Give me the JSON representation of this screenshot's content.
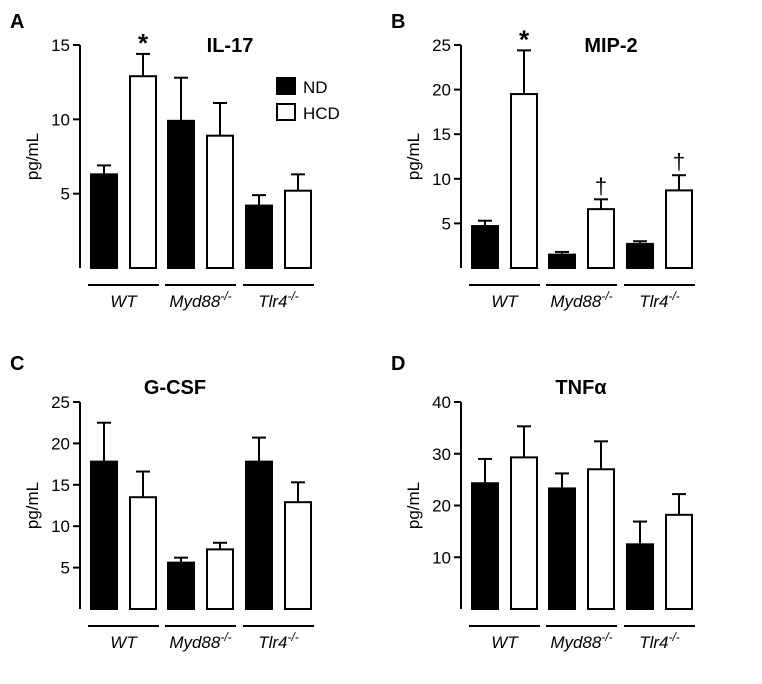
{
  "colors": {
    "nd": "#000000",
    "hcd": "#ffffff",
    "stroke": "#000000"
  },
  "legend": {
    "items": [
      {
        "name": "ND",
        "fill": "#000000"
      },
      {
        "name": "HCD",
        "fill": "#ffffff"
      }
    ],
    "placement": "top-right"
  },
  "chart_data": [
    {
      "panel_label": "A",
      "type": "bar",
      "title": "IL-17",
      "ylabel": "pg/mL",
      "ylim": [
        0,
        15
      ],
      "yticks": [
        5,
        10,
        15
      ],
      "groups": [
        {
          "name": "WT",
          "sup": ""
        },
        {
          "name": "Myd88",
          "sup": "-/-"
        },
        {
          "name": "Tlr4",
          "sup": "-/-"
        }
      ],
      "series": [
        {
          "name": "ND",
          "values": [
            6.3,
            9.9,
            4.2
          ],
          "errors": [
            0.6,
            2.9,
            0.7
          ],
          "marks": [
            "",
            "",
            ""
          ]
        },
        {
          "name": "HCD",
          "values": [
            12.9,
            8.9,
            5.2
          ],
          "errors": [
            1.5,
            2.2,
            1.1
          ],
          "marks": [
            "*",
            "",
            ""
          ]
        }
      ],
      "show_legend": true
    },
    {
      "panel_label": "B",
      "type": "bar",
      "title": "MIP-2",
      "ylabel": "pg/mL",
      "ylim": [
        0,
        25
      ],
      "yticks": [
        5,
        10,
        15,
        20,
        25
      ],
      "groups": [
        {
          "name": "WT",
          "sup": ""
        },
        {
          "name": "Myd88",
          "sup": "-/-"
        },
        {
          "name": "Tlr4",
          "sup": "-/-"
        }
      ],
      "series": [
        {
          "name": "ND",
          "values": [
            4.7,
            1.5,
            2.7
          ],
          "errors": [
            0.6,
            0.3,
            0.3
          ],
          "marks": [
            "",
            "",
            ""
          ]
        },
        {
          "name": "HCD",
          "values": [
            19.5,
            6.6,
            8.7
          ],
          "errors": [
            4.9,
            1.1,
            1.7
          ],
          "marks": [
            "*",
            "†",
            "†"
          ]
        }
      ],
      "show_legend": false
    },
    {
      "panel_label": "C",
      "type": "bar",
      "title": "G-CSF",
      "ylabel": "pg/mL",
      "ylim": [
        0,
        25
      ],
      "yticks": [
        5,
        10,
        15,
        20,
        25
      ],
      "groups": [
        {
          "name": "WT",
          "sup": ""
        },
        {
          "name": "Myd88",
          "sup": "-/-"
        },
        {
          "name": "Tlr4",
          "sup": "-/-"
        }
      ],
      "series": [
        {
          "name": "ND",
          "values": [
            17.8,
            5.6,
            17.8
          ],
          "errors": [
            4.7,
            0.6,
            2.9
          ],
          "marks": [
            "",
            "",
            ""
          ]
        },
        {
          "name": "HCD",
          "values": [
            13.5,
            7.2,
            12.9
          ],
          "errors": [
            3.1,
            0.8,
            2.4
          ],
          "marks": [
            "",
            "",
            ""
          ]
        }
      ],
      "show_legend": false
    },
    {
      "panel_label": "D",
      "type": "bar",
      "title": "TNFα",
      "ylabel": "pg/mL",
      "ylim": [
        0,
        40
      ],
      "yticks": [
        10,
        20,
        30,
        40
      ],
      "groups": [
        {
          "name": "WT",
          "sup": ""
        },
        {
          "name": "Myd88",
          "sup": "-/-"
        },
        {
          "name": "Tlr4",
          "sup": "-/-"
        }
      ],
      "series": [
        {
          "name": "ND",
          "values": [
            24.3,
            23.3,
            12.5
          ],
          "errors": [
            4.7,
            2.9,
            4.4
          ],
          "marks": [
            "",
            "",
            ""
          ]
        },
        {
          "name": "HCD",
          "values": [
            29.3,
            27.0,
            18.2
          ],
          "errors": [
            6.0,
            5.4,
            4.0
          ],
          "marks": [
            "",
            "",
            ""
          ]
        }
      ],
      "show_legend": false
    }
  ]
}
